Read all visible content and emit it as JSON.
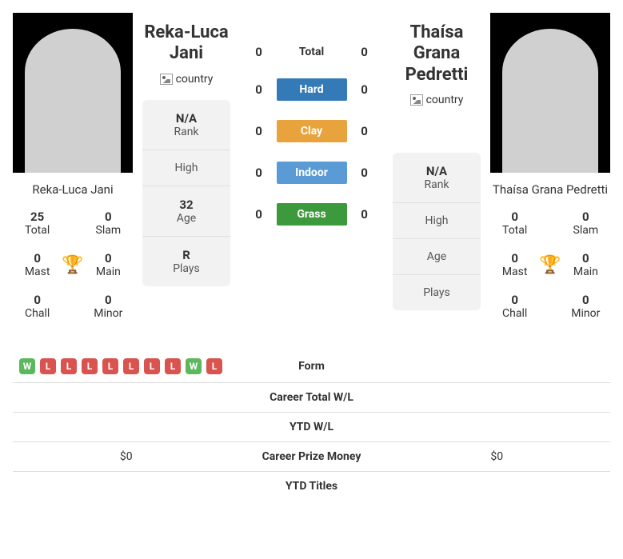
{
  "colors": {
    "win": "#5cb85c",
    "loss": "#d9534f",
    "hard": "#337ab7",
    "clay": "#e8a33d",
    "indoor": "#5b9bd5",
    "grass": "#3c9a3c",
    "trophy": "#1e6bb8"
  },
  "h2h": {
    "rows": [
      {
        "left": "0",
        "label": "Total",
        "right": "0",
        "surface": null
      },
      {
        "left": "0",
        "label": "Hard",
        "right": "0",
        "surface": "hard"
      },
      {
        "left": "0",
        "label": "Clay",
        "right": "0",
        "surface": "clay"
      },
      {
        "left": "0",
        "label": "Indoor",
        "right": "0",
        "surface": "indoor"
      },
      {
        "left": "0",
        "label": "Grass",
        "right": "0",
        "surface": "grass"
      }
    ]
  },
  "player1": {
    "name": "Reka-Luca Jani",
    "country_alt": "country",
    "titles": {
      "total": "25",
      "slam": "0",
      "mast": "0",
      "main": "0",
      "chall": "0",
      "minor": "0"
    },
    "info": {
      "rank": "N/A",
      "high": "",
      "age": "32",
      "plays": "R"
    },
    "form": [
      "W",
      "L",
      "L",
      "L",
      "L",
      "L",
      "L",
      "L",
      "W",
      "L"
    ],
    "prize": "$0"
  },
  "player2": {
    "name": "Thaísa Grana Pedretti",
    "country_alt": "country",
    "titles": {
      "total": "0",
      "slam": "0",
      "mast": "0",
      "main": "0",
      "chall": "0",
      "minor": "0"
    },
    "info": {
      "rank": "N/A",
      "high": "",
      "age": "",
      "plays": ""
    },
    "form": [],
    "prize": "$0"
  },
  "labels": {
    "total": "Total",
    "slam": "Slam",
    "mast": "Mast",
    "main": "Main",
    "chall": "Chall",
    "minor": "Minor",
    "rank": "Rank",
    "high": "High",
    "age": "Age",
    "plays": "Plays",
    "form": "Form",
    "career_wl": "Career Total W/L",
    "ytd_wl": "YTD W/L",
    "prize": "Career Prize Money",
    "ytd_titles": "YTD Titles"
  }
}
